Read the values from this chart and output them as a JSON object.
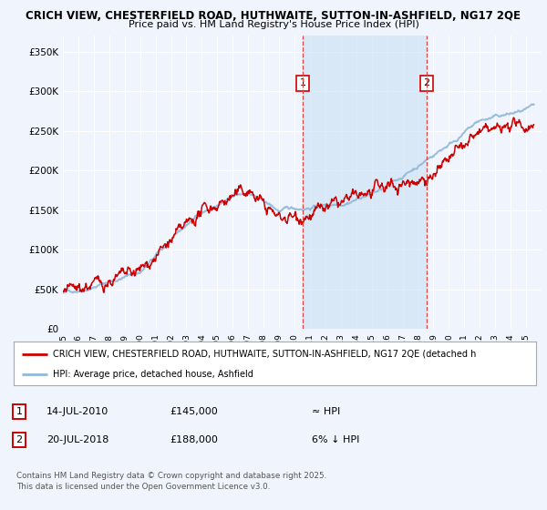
{
  "title1": "CRICH VIEW, CHESTERFIELD ROAD, HUTHWAITE, SUTTON-IN-ASHFIELD, NG17 2QE",
  "title2": "Price paid vs. HM Land Registry's House Price Index (HPI)",
  "ylim": [
    0,
    370000
  ],
  "yticks": [
    0,
    50000,
    100000,
    150000,
    200000,
    250000,
    300000,
    350000
  ],
  "ytick_labels": [
    "£0",
    "£50K",
    "£100K",
    "£150K",
    "£200K",
    "£250K",
    "£300K",
    "£350K"
  ],
  "xmin": 1995,
  "xmax": 2026,
  "bg_color": "#f0f4fc",
  "plot_bg": "#f0f4fc",
  "shade_color": "#d0e4f4",
  "red_color": "#cc0000",
  "blue_color": "#90b8d8",
  "vline_color": "#dd4444",
  "transaction1_x": 2010.53,
  "transaction2_x": 2018.55,
  "legend_red": "CRICH VIEW, CHESTERFIELD ROAD, HUTHWAITE, SUTTON-IN-ASHFIELD, NG17 2QE (detached h",
  "legend_blue": "HPI: Average price, detached house, Ashfield",
  "note1_date": "14-JUL-2010",
  "note1_price": "£145,000",
  "note1_hpi": "≈ HPI",
  "note2_date": "20-JUL-2018",
  "note2_price": "£188,000",
  "note2_hpi": "6% ↓ HPI",
  "footer": "Contains HM Land Registry data © Crown copyright and database right 2025.\nThis data is licensed under the Open Government Licence v3.0."
}
